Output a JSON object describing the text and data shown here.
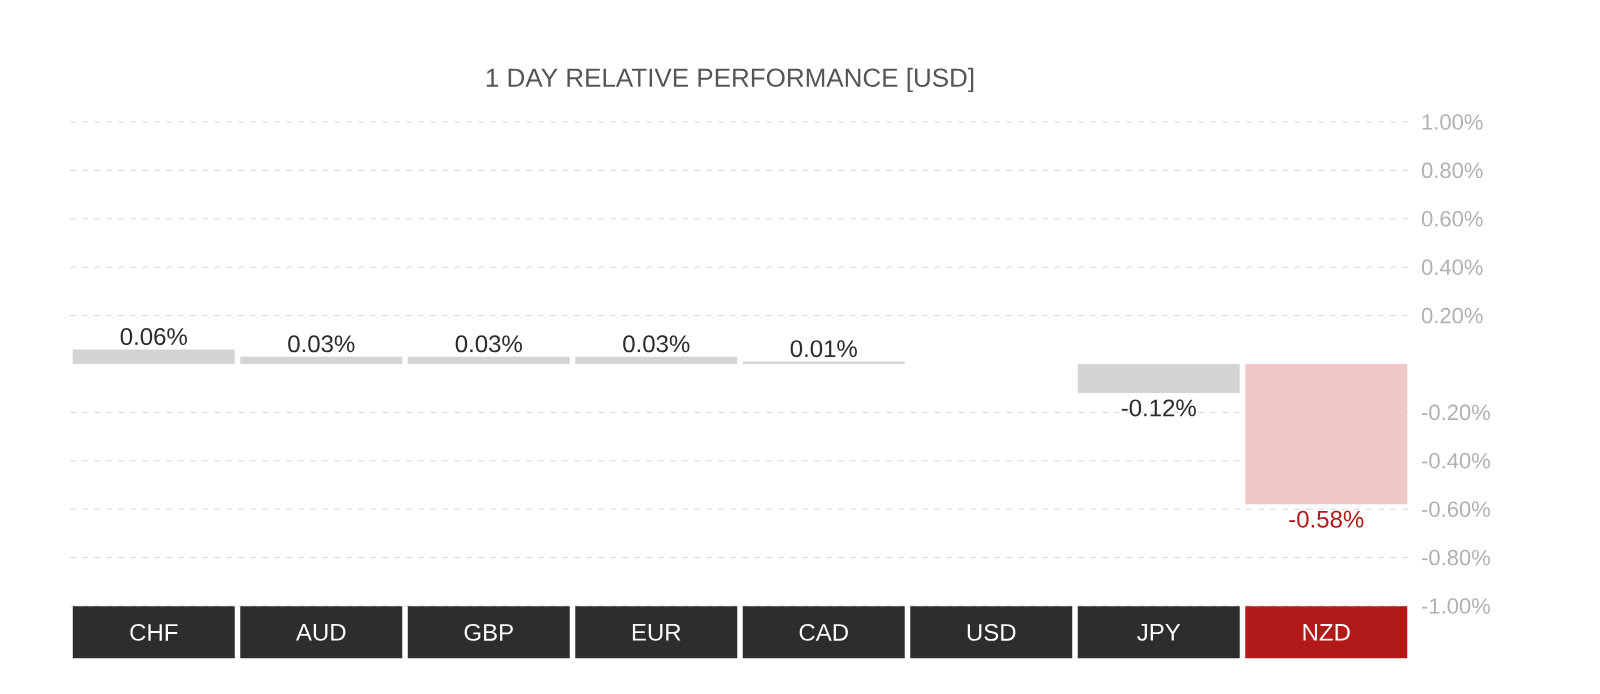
{
  "chart_data": {
    "type": "bar",
    "title": "1 DAY RELATIVE PERFORMANCE  [USD]",
    "categories": [
      "CHF",
      "AUD",
      "GBP",
      "EUR",
      "CAD",
      "USD",
      "JPY",
      "NZD"
    ],
    "values": [
      0.06,
      0.03,
      0.03,
      0.03,
      0.01,
      0,
      -0.12,
      -0.58
    ],
    "colors": [
      "#d4d4d4",
      "#d4d4d4",
      "#d4d4d4",
      "#d4d4d4",
      "#d4d4d4",
      "#d4d4d4",
      "#d4d4d4",
      "#f0c8c8"
    ],
    "value_labels": [
      "0.06%",
      "0.03%",
      "0.03%",
      "0.03%",
      "0.01%",
      null,
      "-0.12%",
      "-0.58%"
    ],
    "ylim": [
      -1,
      1
    ],
    "yticks": [
      {
        "value": 1,
        "label": "1.00%"
      },
      {
        "value": 0.8,
        "label": "0.80%"
      },
      {
        "value": 0.6,
        "label": "0.60%"
      },
      {
        "value": 0.4,
        "label": "0.40%"
      },
      {
        "value": 0.2,
        "label": "0.20%"
      },
      {
        "value": -0.2,
        "label": "-0.20%"
      },
      {
        "value": -0.4,
        "label": "-0.40%"
      },
      {
        "value": -0.6,
        "label": "-0.60%"
      },
      {
        "value": -0.8,
        "label": "-0.80%"
      },
      {
        "value": -1,
        "label": "-1.00%"
      }
    ],
    "grid": "y"
  }
}
